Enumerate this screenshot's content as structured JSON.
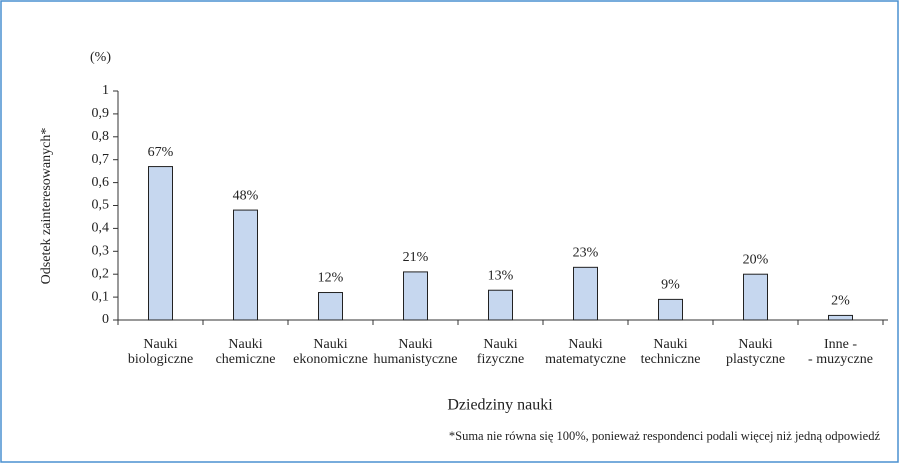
{
  "chart_data": {
    "type": "bar",
    "unit_label": "(%)",
    "y_label": "Odsetek zainteresowanych*",
    "x_label": "Dziedziny nauki",
    "footnote": "*Suma nie równa się 100%, ponieważ respondenci podali więcej niż jedną odpowiedź",
    "categories": [
      [
        "Nauki",
        "biologiczne"
      ],
      [
        "Nauki",
        "chemiczne"
      ],
      [
        "Nauki",
        "ekonomiczne"
      ],
      [
        "Nauki",
        "humanistyczne"
      ],
      [
        "Nauki",
        "fizyczne"
      ],
      [
        "Nauki",
        "matematyczne"
      ],
      [
        "Nauki",
        "techniczne"
      ],
      [
        "Nauki",
        "plastyczne"
      ],
      [
        "Inne -",
        "- muzyczne"
      ]
    ],
    "values": [
      0.67,
      0.48,
      0.12,
      0.21,
      0.13,
      0.23,
      0.09,
      0.2,
      0.02
    ],
    "value_labels": [
      "67%",
      "48%",
      "12%",
      "21%",
      "13%",
      "23%",
      "9%",
      "20%",
      "2%"
    ],
    "color": "#c6d7ef",
    "ylim": [
      0,
      1
    ],
    "yticks": [
      0,
      {
        "value": 0.1,
        "label": "0,1"
      },
      {
        "value": 0.2,
        "label": "0,2"
      },
      {
        "value": 0.3,
        "label": "0,3"
      },
      {
        "value": 0.4,
        "label": "0,4"
      },
      {
        "value": 0.5,
        "label": "0,5"
      },
      {
        "value": 0.6,
        "label": "0,6"
      },
      {
        "value": 0.7,
        "label": "0,7"
      },
      {
        "value": 0.8,
        "label": "0,8"
      },
      {
        "value": 0.9,
        "label": "0,9"
      },
      1
    ],
    "grid": false
  }
}
